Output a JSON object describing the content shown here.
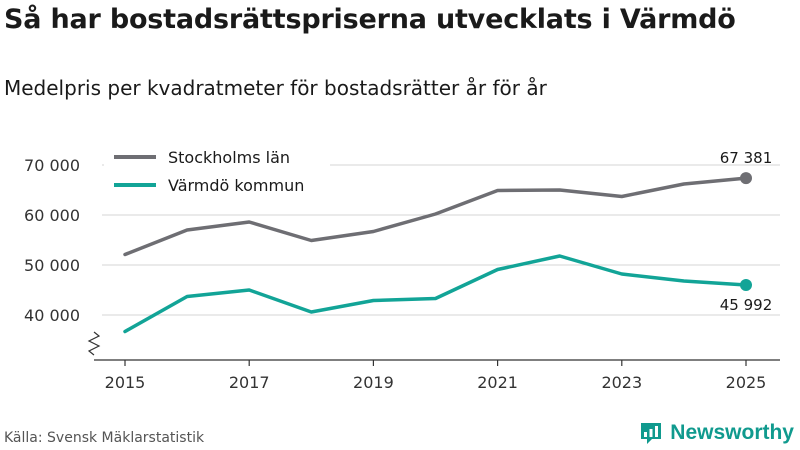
{
  "header": {
    "title": "Så har bostadsrättspriserna utvecklats i Värmdö",
    "subtitle": "Medelpris per kvadratmeter för bostadsrätter år för år"
  },
  "footer": {
    "source": "Källa: Svensk Mäklarstatistik",
    "brand": "Newsworthy"
  },
  "chart_data": {
    "type": "line",
    "title": "Så har bostadsrättspriserna utvecklats i Värmdö",
    "subtitle": "Medelpris per kvadratmeter för bostadsrätter år för år",
    "xlabel": "",
    "ylabel": "",
    "x": [
      2015,
      2016,
      2017,
      2018,
      2019,
      2020,
      2021,
      2022,
      2023,
      2024,
      2025
    ],
    "x_ticks": [
      2015,
      2017,
      2019,
      2021,
      2023,
      2025
    ],
    "x_tick_labels": [
      "2015",
      "2017",
      "2019",
      "2021",
      "2023",
      "2025"
    ],
    "y_ticks": [
      40000,
      50000,
      60000,
      70000
    ],
    "y_tick_labels": [
      "40 000",
      "50 000",
      "60 000",
      "70 000"
    ],
    "ylim": [
      30000,
      72000
    ],
    "axis_break": true,
    "grid": true,
    "legend_position": "top-left",
    "series": [
      {
        "name": "Stockholms län",
        "color": "#6e6e73",
        "values": [
          52100,
          57000,
          58600,
          54900,
          56700,
          60200,
          64900,
          65000,
          63700,
          66200,
          67381
        ],
        "end_label": "67 381",
        "end_label_position": "above"
      },
      {
        "name": "Värmdö kommun",
        "color": "#12a497",
        "values": [
          36700,
          43700,
          45000,
          40600,
          42900,
          43300,
          49100,
          51800,
          48200,
          46800,
          45992
        ],
        "end_label": "45 992",
        "end_label_position": "below"
      }
    ]
  }
}
